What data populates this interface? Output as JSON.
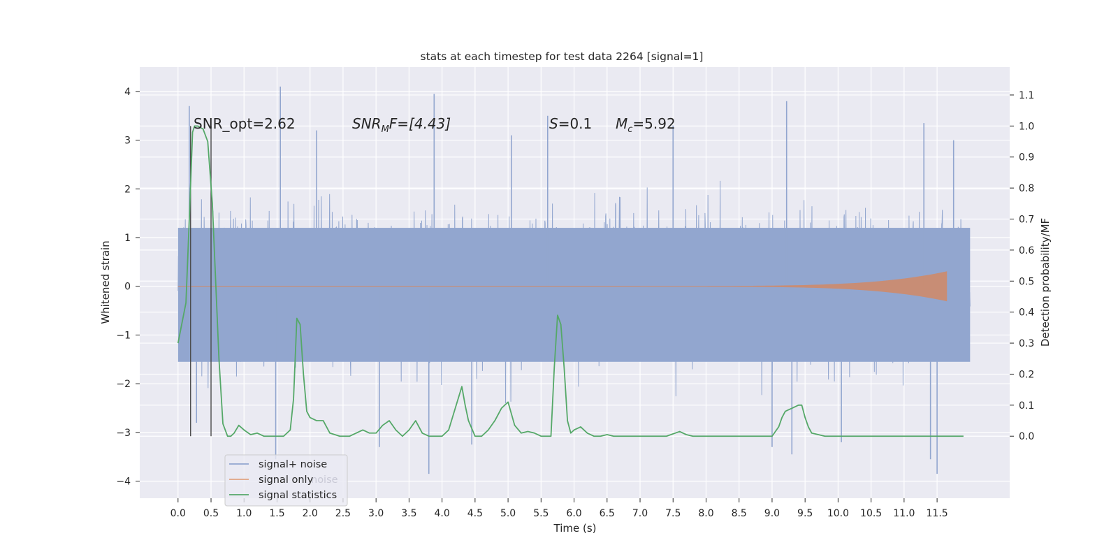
{
  "chart_data": {
    "type": "line",
    "title": "stats at each timestep for test data 2264 [signal=1]",
    "xlabel": "Time (s)",
    "ylabel": "Whitened strain",
    "ylabel_right": "Detection probability/MF",
    "xlim": [
      -0.58,
      12.6
    ],
    "ylim": [
      -4.35,
      4.5
    ],
    "ylim_right": [
      -0.2,
      1.19
    ],
    "grid": true,
    "legend_placement": "lower-left",
    "x_ticks": [
      "0.0",
      "0.5",
      "1.0",
      "1.5",
      "2.0",
      "2.5",
      "3.0",
      "3.5",
      "4.0",
      "4.5",
      "5.0",
      "5.5",
      "6.0",
      "6.5",
      "7.0",
      "7.5",
      "8.0",
      "8.5",
      "9.0",
      "9.5",
      "10.0",
      "10.5",
      "11.0",
      "11.5"
    ],
    "y_ticks_left": [
      "4",
      "3",
      "2",
      "1",
      "0",
      "−1",
      "−2",
      "−3",
      "−4"
    ],
    "y_ticks_right": [
      "1.1",
      "1.0",
      "0.9",
      "0.8",
      "0.7",
      "0.6",
      "0.5",
      "0.4",
      "0.3",
      "0.2",
      "0.1",
      "0.0"
    ],
    "annotations": {
      "snr_opt": "SNR_opt=2.62",
      "snr_mf_main": "SNR",
      "snr_mf_sub": "M",
      "snr_mf_rest": "F=[4.43]",
      "s_main": "S",
      "s_rest": "=0.1",
      "mc_main": "M",
      "mc_sub": "c",
      "mc_rest": "=5.92"
    },
    "vertical_markers_x": [
      0.19,
      0.5
    ],
    "series": [
      {
        "name": "signal+ noise",
        "color": "#92a6cf",
        "x_range": [
          0,
          12.0
        ],
        "y_band": [
          -2.1,
          2.2
        ],
        "extreme_peaks": [
          {
            "x": 0.17,
            "y": 3.7
          },
          {
            "x": 0.28,
            "y": -2.8
          },
          {
            "x": 1.55,
            "y": 4.1
          },
          {
            "x": 1.48,
            "y": -3.55
          },
          {
            "x": 2.1,
            "y": 3.2
          },
          {
            "x": 3.05,
            "y": -3.3
          },
          {
            "x": 3.8,
            "y": -3.85
          },
          {
            "x": 3.88,
            "y": 3.95
          },
          {
            "x": 4.45,
            "y": -3.25
          },
          {
            "x": 5.05,
            "y": 3.1
          },
          {
            "x": 5.6,
            "y": 3.5
          },
          {
            "x": 7.5,
            "y": 3.3
          },
          {
            "x": 9.0,
            "y": -3.3
          },
          {
            "x": 9.22,
            "y": 3.8
          },
          {
            "x": 9.3,
            "y": -3.45
          },
          {
            "x": 10.05,
            "y": -3.2
          },
          {
            "x": 11.3,
            "y": 3.35
          },
          {
            "x": 11.4,
            "y": -3.55
          },
          {
            "x": 11.5,
            "y": -3.85
          },
          {
            "x": 11.75,
            "y": 3.0
          }
        ]
      },
      {
        "name": "signal only",
        "color": "#dd8452",
        "chirp": {
          "x_start": 7.0,
          "x_end": 11.65,
          "peak_amplitude": 0.3
        }
      },
      {
        "name": "signal statistics",
        "color": "#55a868",
        "axis": "right",
        "x": [
          0.0,
          0.12,
          0.18,
          0.22,
          0.25,
          0.3,
          0.38,
          0.45,
          0.52,
          0.58,
          0.62,
          0.68,
          0.75,
          0.8,
          0.85,
          0.92,
          1.0,
          1.1,
          1.2,
          1.3,
          1.4,
          1.5,
          1.6,
          1.7,
          1.75,
          1.8,
          1.85,
          1.9,
          1.95,
          2.0,
          2.1,
          2.2,
          2.3,
          2.45,
          2.6,
          2.8,
          2.9,
          3.0,
          3.1,
          3.2,
          3.3,
          3.4,
          3.5,
          3.6,
          3.7,
          3.8,
          3.9,
          4.0,
          4.1,
          4.2,
          4.3,
          4.35,
          4.4,
          4.5,
          4.6,
          4.7,
          4.8,
          4.9,
          5.0,
          5.1,
          5.2,
          5.3,
          5.4,
          5.5,
          5.6,
          5.65,
          5.7,
          5.75,
          5.8,
          5.85,
          5.9,
          5.95,
          6.0,
          6.1,
          6.2,
          6.3,
          6.4,
          6.5,
          6.6,
          6.7,
          6.8,
          7.0,
          7.2,
          7.4,
          7.6,
          7.7,
          7.8,
          7.9,
          8.2,
          8.5,
          8.8,
          9.0,
          9.1,
          9.15,
          9.2,
          9.25,
          9.3,
          9.4,
          9.45,
          9.5,
          9.55,
          9.6,
          9.7,
          9.8,
          10.0,
          10.3,
          10.6,
          11.0,
          11.3,
          11.6,
          11.9
        ],
        "values": [
          0.3,
          0.43,
          0.75,
          0.98,
          1.0,
          1.0,
          0.99,
          0.95,
          0.75,
          0.45,
          0.25,
          0.04,
          0.0,
          0.0,
          0.01,
          0.035,
          0.02,
          0.005,
          0.01,
          0.0,
          0.0,
          0.0,
          0.0,
          0.02,
          0.12,
          0.38,
          0.36,
          0.2,
          0.08,
          0.06,
          0.05,
          0.05,
          0.01,
          0.0,
          0.0,
          0.02,
          0.01,
          0.01,
          0.035,
          0.05,
          0.02,
          0.0,
          0.02,
          0.05,
          0.01,
          0.0,
          0.0,
          0.0,
          0.02,
          0.09,
          0.16,
          0.1,
          0.05,
          0.0,
          0.0,
          0.02,
          0.05,
          0.09,
          0.11,
          0.035,
          0.01,
          0.015,
          0.01,
          0.0,
          0.0,
          0.0,
          0.22,
          0.39,
          0.36,
          0.22,
          0.05,
          0.01,
          0.02,
          0.03,
          0.01,
          0.0,
          0.0,
          0.005,
          0.0,
          0.0,
          0.0,
          0.0,
          0.0,
          0.0,
          0.015,
          0.005,
          0.0,
          0.0,
          0.0,
          0.0,
          0.0,
          0.0,
          0.03,
          0.06,
          0.08,
          0.085,
          0.09,
          0.1,
          0.1,
          0.06,
          0.03,
          0.01,
          0.005,
          0.0,
          0.0,
          0.0,
          0.0,
          0.0,
          0.0,
          0.0,
          0.0
        ]
      }
    ],
    "legend": [
      {
        "label": "signal+ noise",
        "color": "#92a6cf"
      },
      {
        "label": "signal only",
        "color": "#dd8452"
      },
      {
        "label": "signal statistics",
        "color": "#55a868"
      }
    ],
    "legend_overlap_text": "noise"
  }
}
